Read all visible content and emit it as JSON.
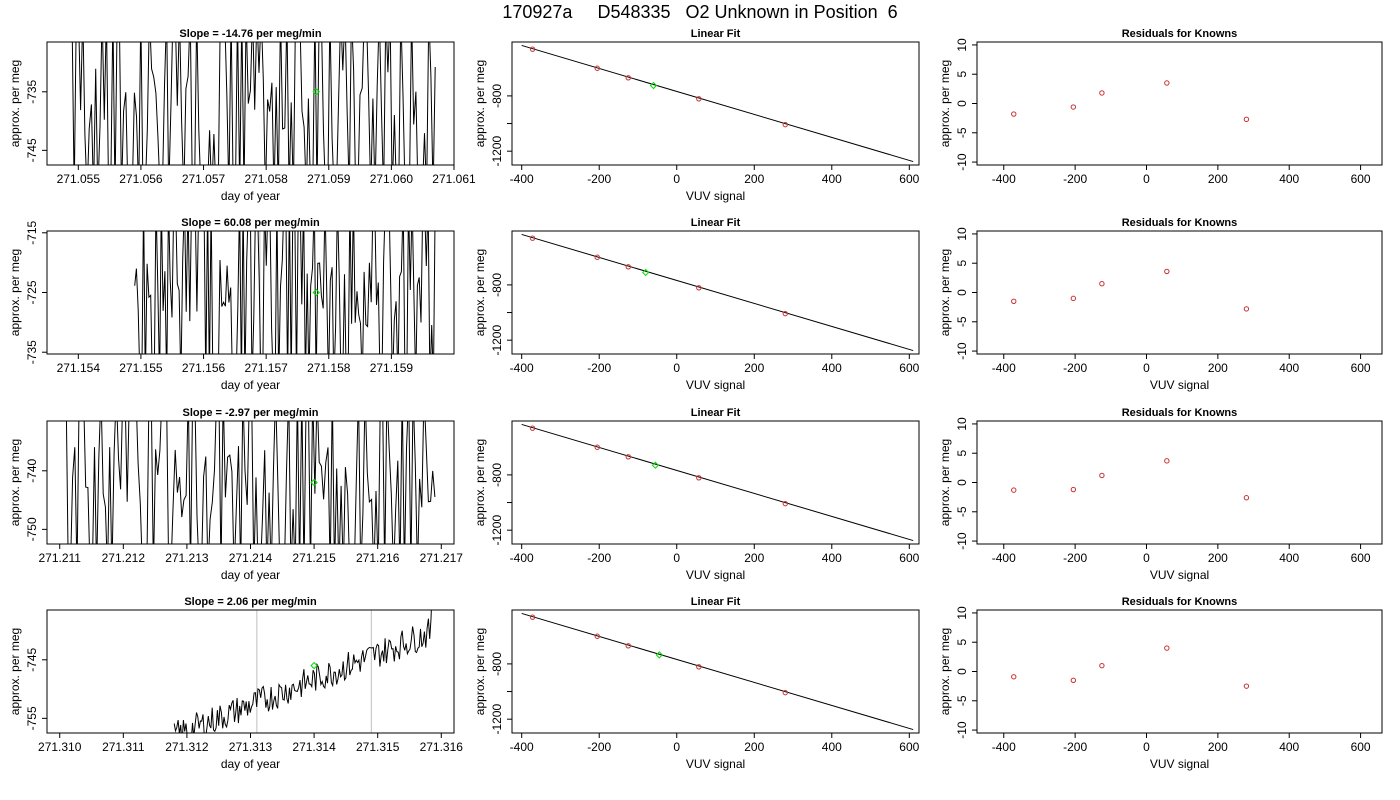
{
  "figure": {
    "title": "170927a     D548335   O2 Unknown in Position  6",
    "colors": {
      "trace": "#000000",
      "marker": "#00dd00",
      "known": "#c83232",
      "vline": "#bfbfbf"
    }
  },
  "chart_data": [
    {
      "id": "r1-timeseries",
      "type": "line",
      "title": "Slope =  -14.76  per meg/min",
      "xlabel": "day of year",
      "ylabel": "approx. per meg",
      "xlim": [
        271.0545,
        271.061
      ],
      "ylim": [
        -747.5,
        -726.5
      ],
      "xticks": [
        271.055,
        271.056,
        271.057,
        271.058,
        271.059,
        271.06,
        271.061
      ],
      "xtick_labels": [
        "271.055",
        "271.056",
        "271.057",
        "271.058",
        "271.059",
        "271.060",
        "271.061"
      ],
      "yticks": [
        -745,
        -735
      ],
      "ytick_labels": [
        "-745",
        "-735"
      ],
      "marker": {
        "x": 271.0588,
        "y": -735
      },
      "trace": {
        "kind": "spikes",
        "x_start": 271.0549,
        "x_end": 271.0607,
        "y_low": -747.5,
        "y_high": -726.5,
        "seed": 7
      },
      "vlines": []
    },
    {
      "id": "r1-fit",
      "type": "scatter",
      "title": "Linear Fit",
      "xlabel": "VUV signal",
      "ylabel": "approx. per meg",
      "xlim": [
        -425,
        625
      ],
      "ylim": [
        -1300,
        -410
      ],
      "xticks": [
        -400,
        -200,
        0,
        200,
        400,
        600
      ],
      "xtick_labels": [
        "-400",
        "-200",
        "0",
        "200",
        "400",
        "600"
      ],
      "yticks": [
        -1200,
        -1000,
        -800
      ],
      "ytick_labels": [
        "-1200",
        "",
        "-800"
      ],
      "line": {
        "x": [
          -400,
          610
        ],
        "y": [
          -435,
          -1275
        ]
      },
      "knowns": {
        "x": [
          -372,
          -205,
          -125,
          57,
          280
        ],
        "y": [
          -462,
          -600,
          -669,
          -821,
          -1008
        ]
      },
      "unknown": {
        "x": -60,
        "y": -725
      }
    },
    {
      "id": "r1-resid",
      "type": "scatter",
      "title": "Residuals for Knowns",
      "xlabel": "",
      "ylabel": "approx. per meg",
      "xlim": [
        -475,
        660
      ],
      "ylim": [
        -10.5,
        10.5
      ],
      "xticks": [
        -400,
        -200,
        0,
        200,
        400,
        600
      ],
      "xtick_labels": [
        "-400",
        "-200",
        "0",
        "200",
        "400",
        "600"
      ],
      "yticks": [
        -10,
        -5,
        0,
        5,
        10
      ],
      "ytick_labels": [
        "-10",
        "-5",
        "0",
        "5",
        "10"
      ],
      "x": [
        -372,
        -205,
        -125,
        57,
        280
      ],
      "y": [
        -1.8,
        -0.6,
        1.8,
        3.5,
        -2.7
      ]
    },
    {
      "id": "r2-timeseries",
      "type": "line",
      "title": "Slope =  60.08  per meg/min",
      "xlabel": "day of year",
      "ylabel": "approx. per meg",
      "xlim": [
        271.1535,
        271.16
      ],
      "ylim": [
        -735.3,
        -714.7
      ],
      "xticks": [
        271.154,
        271.155,
        271.156,
        271.157,
        271.158,
        271.159
      ],
      "xtick_labels": [
        "271.154",
        "271.155",
        "271.156",
        "271.157",
        "271.158",
        "271.159"
      ],
      "yticks": [
        -735,
        -725,
        -715
      ],
      "ytick_labels": [
        "-735",
        "-725",
        "-715"
      ],
      "marker": {
        "x": 271.1578,
        "y": -725
      },
      "trace": {
        "kind": "spikes",
        "x_start": 271.1549,
        "x_end": 271.1597,
        "y_low": -735.3,
        "y_high": -714.7,
        "seed": 19
      },
      "vlines": [
        271.1569
      ]
    },
    {
      "id": "r2-fit",
      "type": "scatter",
      "title": "Linear Fit",
      "xlabel": "VUV signal",
      "ylabel": "approx. per meg",
      "xlim": [
        -425,
        625
      ],
      "ylim": [
        -1300,
        -410
      ],
      "xticks": [
        -400,
        -200,
        0,
        200,
        400,
        600
      ],
      "xtick_labels": [
        "-400",
        "-200",
        "0",
        "200",
        "400",
        "600"
      ],
      "yticks": [
        -1200,
        -1000,
        -800
      ],
      "ytick_labels": [
        "-1200",
        "",
        "-800"
      ],
      "line": {
        "x": [
          -400,
          610
        ],
        "y": [
          -435,
          -1275
        ]
      },
      "knowns": {
        "x": [
          -372,
          -205,
          -125,
          57,
          280
        ],
        "y": [
          -462,
          -600,
          -669,
          -821,
          -1008
        ]
      },
      "unknown": {
        "x": -80,
        "y": -710
      }
    },
    {
      "id": "r2-resid",
      "type": "scatter",
      "title": "Residuals for Knowns",
      "xlabel": "VUV signal",
      "ylabel": "approx. per meg",
      "xlim": [
        -475,
        660
      ],
      "ylim": [
        -10.5,
        10.5
      ],
      "xticks": [
        -400,
        -200,
        0,
        200,
        400,
        600
      ],
      "xtick_labels": [
        "-400",
        "-200",
        "0",
        "200",
        "400",
        "600"
      ],
      "yticks": [
        -10,
        -5,
        0,
        5,
        10
      ],
      "ytick_labels": [
        "-10",
        "-5",
        "0",
        "5",
        "10"
      ],
      "x": [
        -372,
        -205,
        -125,
        57,
        280
      ],
      "y": [
        -1.5,
        -1.0,
        1.5,
        3.6,
        -2.8
      ]
    },
    {
      "id": "r3-timeseries",
      "type": "line",
      "title": "Slope =  -2.97  per meg/min",
      "xlabel": "day of year",
      "ylabel": "approx. per meg",
      "xlim": [
        271.2108,
        271.2172
      ],
      "ylim": [
        -752.5,
        -731.5
      ],
      "xticks": [
        271.211,
        271.212,
        271.213,
        271.214,
        271.215,
        271.216,
        271.217
      ],
      "xtick_labels": [
        "271.211",
        "271.212",
        "271.213",
        "271.214",
        "271.215",
        "271.216",
        "271.217"
      ],
      "yticks": [
        -750,
        -740
      ],
      "ytick_labels": [
        "-750",
        "-740"
      ],
      "marker": {
        "x": 271.215,
        "y": -742
      },
      "trace": {
        "kind": "spikes",
        "x_start": 271.2111,
        "x_end": 271.2169,
        "y_low": -752.5,
        "y_high": -731.5,
        "seed": 31
      },
      "vlines": []
    },
    {
      "id": "r3-fit",
      "type": "scatter",
      "title": "Linear Fit",
      "xlabel": "VUV signal",
      "ylabel": "approx. per meg",
      "xlim": [
        -425,
        625
      ],
      "ylim": [
        -1300,
        -410
      ],
      "xticks": [
        -400,
        -200,
        0,
        200,
        400,
        600
      ],
      "xtick_labels": [
        "-400",
        "-200",
        "0",
        "200",
        "400",
        "600"
      ],
      "yticks": [
        -1200,
        -1000,
        -800
      ],
      "ytick_labels": [
        "-1200",
        "",
        "-800"
      ],
      "line": {
        "x": [
          -400,
          610
        ],
        "y": [
          -435,
          -1275
        ]
      },
      "knowns": {
        "x": [
          -372,
          -205,
          -125,
          57,
          280
        ],
        "y": [
          -462,
          -600,
          -669,
          -821,
          -1008
        ]
      },
      "unknown": {
        "x": -55,
        "y": -730
      }
    },
    {
      "id": "r3-resid",
      "type": "scatter",
      "title": "Residuals for Knowns",
      "xlabel": "VUV signal",
      "ylabel": "approx. per meg",
      "xlim": [
        -475,
        660
      ],
      "ylim": [
        -10.5,
        10.5
      ],
      "xticks": [
        -400,
        -200,
        0,
        200,
        400,
        600
      ],
      "xtick_labels": [
        "-400",
        "-200",
        "0",
        "200",
        "400",
        "600"
      ],
      "yticks": [
        -10,
        -5,
        0,
        5,
        10
      ],
      "ytick_labels": [
        "-10",
        "-5",
        "0",
        "5",
        "10"
      ],
      "x": [
        -372,
        -205,
        -125,
        57,
        280
      ],
      "y": [
        -1.3,
        -1.2,
        1.2,
        3.7,
        -2.6
      ]
    },
    {
      "id": "r4-timeseries",
      "type": "line",
      "title": "Slope =  2.06  per meg/min",
      "xlabel": "day of year",
      "ylabel": "approx. per meg",
      "xlim": [
        271.3098,
        271.3162
      ],
      "ylim": [
        -757.5,
        -736.5
      ],
      "xticks": [
        271.31,
        271.311,
        271.312,
        271.313,
        271.314,
        271.315,
        271.316
      ],
      "xtick_labels": [
        "271.310",
        "271.311",
        "271.312",
        "271.313",
        "271.314",
        "271.315",
        "271.316"
      ],
      "yticks": [
        -755,
        -745
      ],
      "ytick_labels": [
        "-755",
        "-745"
      ],
      "marker": {
        "x": 271.314,
        "y": -746
      },
      "trace": {
        "kind": "trend",
        "x_start": 271.3118,
        "x_end": 271.3159,
        "y_start": -758,
        "y_end": -740,
        "seed": 43
      },
      "vlines": [
        271.3131,
        271.3149
      ]
    },
    {
      "id": "r4-fit",
      "type": "scatter",
      "title": "Linear Fit",
      "xlabel": "VUV signal",
      "ylabel": "approx. per meg",
      "xlim": [
        -425,
        625
      ],
      "ylim": [
        -1300,
        -410
      ],
      "xticks": [
        -400,
        -200,
        0,
        200,
        400,
        600
      ],
      "xtick_labels": [
        "-400",
        "-200",
        "0",
        "200",
        "400",
        "600"
      ],
      "yticks": [
        -1200,
        -1000,
        -800
      ],
      "ytick_labels": [
        "-1200",
        "",
        "-800"
      ],
      "line": {
        "x": [
          -400,
          610
        ],
        "y": [
          -435,
          -1275
        ]
      },
      "knowns": {
        "x": [
          -372,
          -205,
          -125,
          57,
          280
        ],
        "y": [
          -462,
          -600,
          -669,
          -821,
          -1008
        ]
      },
      "unknown": {
        "x": -45,
        "y": -735
      }
    },
    {
      "id": "r4-resid",
      "type": "scatter",
      "title": "Residuals for Knowns",
      "xlabel": "VUV signal",
      "ylabel": "approx. per meg",
      "xlim": [
        -475,
        660
      ],
      "ylim": [
        -10.5,
        10.5
      ],
      "xticks": [
        -400,
        -200,
        0,
        200,
        400,
        600
      ],
      "xtick_labels": [
        "-400",
        "-200",
        "0",
        "200",
        "400",
        "600"
      ],
      "yticks": [
        -10,
        -5,
        0,
        5,
        10
      ],
      "ytick_labels": [
        "-10",
        "-5",
        "0",
        "5",
        "10"
      ],
      "x": [
        -372,
        -205,
        -125,
        57,
        280
      ],
      "y": [
        -0.9,
        -1.5,
        1.0,
        4.0,
        -2.5
      ]
    }
  ]
}
